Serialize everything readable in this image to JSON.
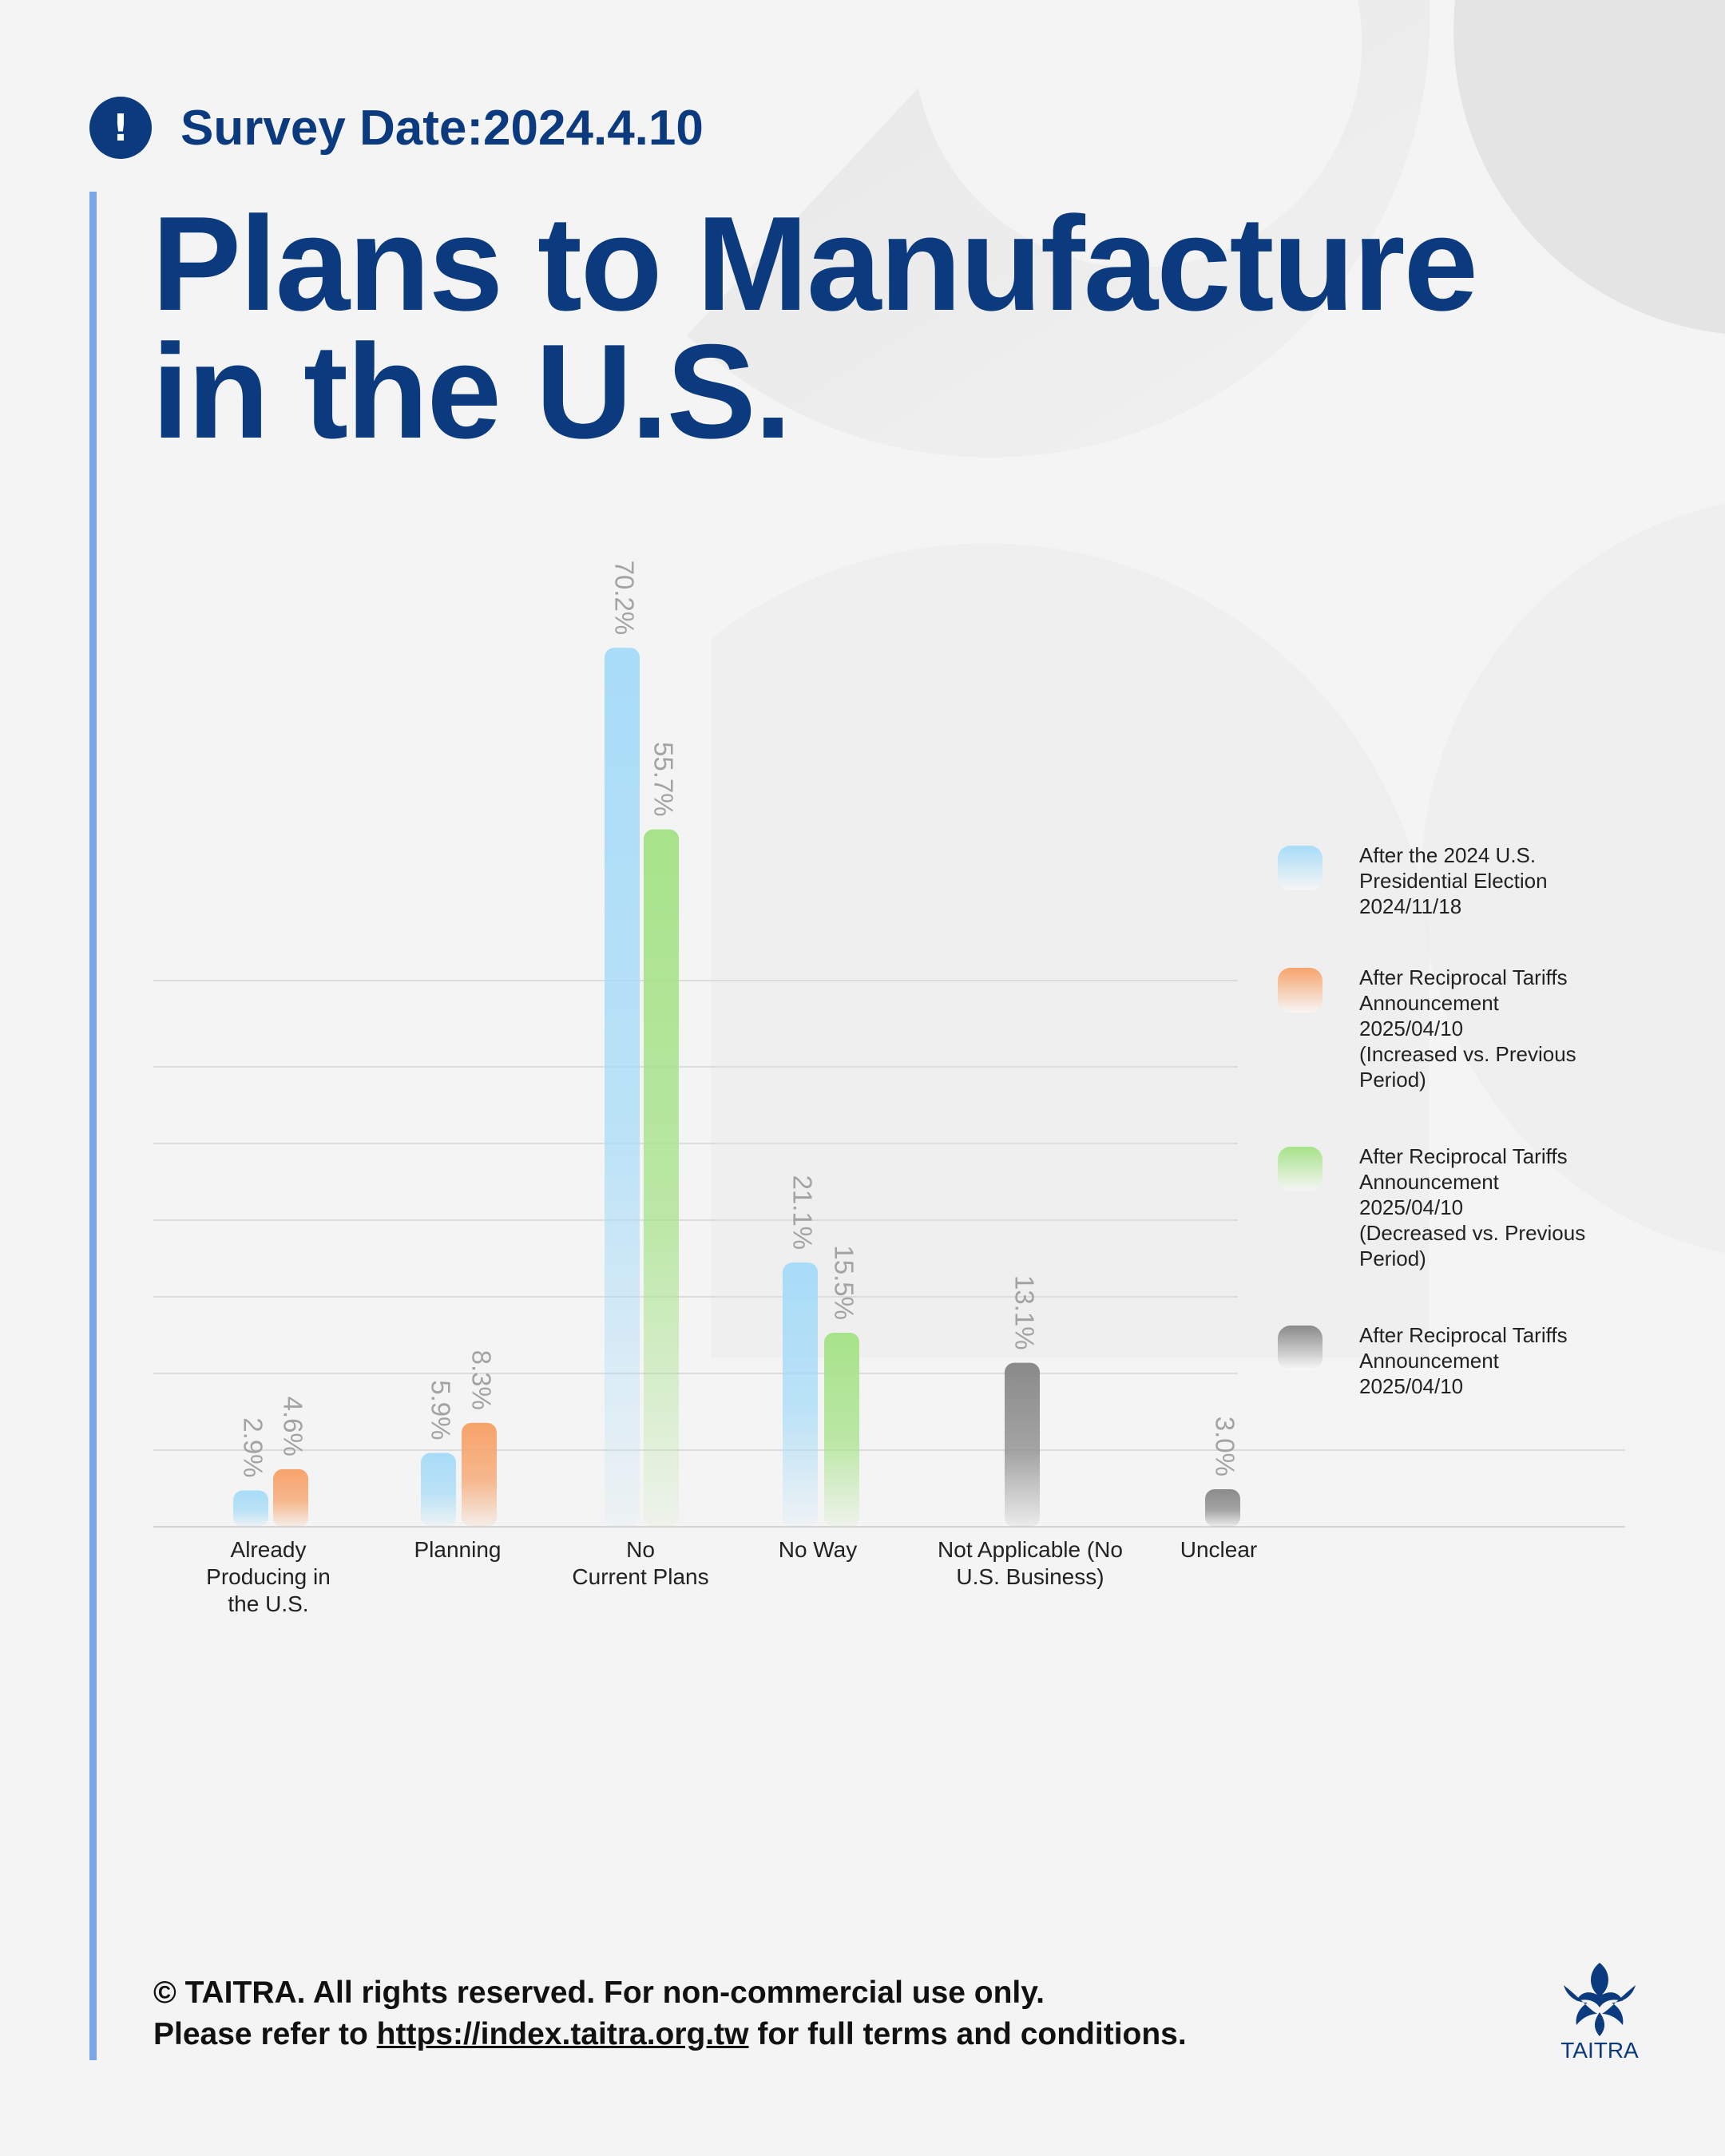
{
  "header": {
    "alert_glyph": "!",
    "survey_date": "Survey Date:2024.4.10",
    "title_line1": "Plans to Manufacture",
    "title_line2": "in the U.S."
  },
  "colors": {
    "navy": "#0b3a7e",
    "accent": "#7aa7ea",
    "blue": "#a8dcf8",
    "orange": "#f7a36b",
    "green": "#a7e38a",
    "gray": "#8a8a8a"
  },
  "legend": [
    {
      "label": "After the 2024 U.S.\nPresidential Election\n2024/11/18",
      "color": "#a8dcf8"
    },
    {
      "label": "After Reciprocal Tariffs\nAnnouncement\n2025/04/10\n(Increased vs. Previous\nPeriod)",
      "color": "#f7a36b"
    },
    {
      "label": "After Reciprocal Tariffs\nAnnouncement\n2025/04/10\n(Decreased vs. Previous\nPeriod)",
      "color": "#a7e38a"
    },
    {
      "label": "After Reciprocal Tariffs\nAnnouncement\n2025/04/10",
      "color": "#8a8a8a"
    }
  ],
  "chart_data": {
    "type": "bar",
    "title": "Plans to Manufacture in the U.S.",
    "ylim": [
      0,
      75
    ],
    "grid": true,
    "legend_position": "right",
    "categories": [
      "Already\nProducing in\nthe U.S.",
      "Planning",
      "No\nCurrent Plans",
      "No Way",
      "Not Applicable (No\nU.S. Business)",
      "Unclear"
    ],
    "bars": [
      {
        "category": 0,
        "value": 2.9,
        "label": "2.9%",
        "series": 0
      },
      {
        "category": 0,
        "value": 4.6,
        "label": "4.6%",
        "series": 1
      },
      {
        "category": 1,
        "value": 5.9,
        "label": "5.9%",
        "series": 0
      },
      {
        "category": 1,
        "value": 8.3,
        "label": "8.3%",
        "series": 1
      },
      {
        "category": 2,
        "value": 70.2,
        "label": "70.2%",
        "series": 0
      },
      {
        "category": 2,
        "value": 55.7,
        "label": "55.7%",
        "series": 2
      },
      {
        "category": 3,
        "value": 21.1,
        "label": "21.1%",
        "series": 0
      },
      {
        "category": 3,
        "value": 15.5,
        "label": "15.5%",
        "series": 2
      },
      {
        "category": 4,
        "value": 13.1,
        "label": "13.1%",
        "series": 3
      },
      {
        "category": 5,
        "value": 3.0,
        "label": "3.0%",
        "series": 3
      }
    ]
  },
  "footer": {
    "line1": "© TAITRA. All rights reserved. For non-commercial use only.",
    "line2_pre": "Please refer to ",
    "line2_link": "https://index.taitra.org.tw",
    "line2_post": " for full terms and conditions."
  },
  "logo": {
    "text": "TAITRA"
  }
}
